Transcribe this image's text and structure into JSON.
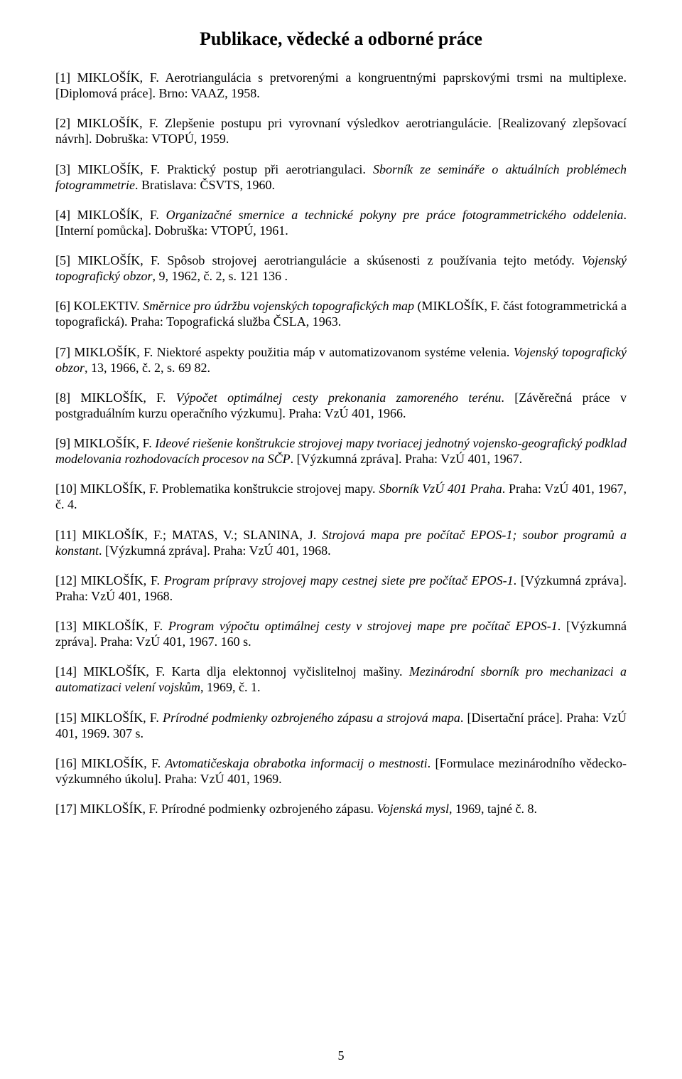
{
  "title": "Publikace, vědecké a odborné práce",
  "page_number": "5",
  "entries": [
    {
      "lead": "[1] MIKLOŠÍK, F. Aerotriangulácia s pretvorenými a kongruentnými paprskovými trsmi na multiplexe. [Diplomová práce]. Brno: VAAZ, 1958.",
      "italic_title": "",
      "tail": ""
    },
    {
      "lead": "[2] MIKLOŠÍK, F. Zlepšenie postupu pri vyrovnaní výsledkov aerotriangulácie. [Realizovaný zlepšovací návrh]. Dobruška: VTOPÚ, 1959.",
      "italic_title": "",
      "tail": ""
    },
    {
      "lead": "[3] MIKLOŠÍK, F. Praktický postup při aerotriangulaci. ",
      "italic_title": "Sborník ze semináře o aktuálních problémech fotogrammetrie",
      "tail": ". Bratislava: ČSVTS, 1960."
    },
    {
      "lead": "[4] MIKLOŠÍK, F. ",
      "italic_title": "Organizačné smernice a technické pokyny pre práce fotogrammetrického oddelenia",
      "tail": ". [Interní pomůcka]. Dobruška: VTOPÚ, 1961."
    },
    {
      "lead": "[5] MIKLOŠÍK, F. Spôsob strojovej aerotriangulácie a skúsenosti z používania tejto metódy. ",
      "italic_title": "Vojenský topografický obzor",
      "tail": ", 9, 1962, č. 2, s. 121 136 ."
    },
    {
      "lead": "[6] KOLEKTIV. ",
      "italic_title": "Směrnice pro údržbu vojenských topografických map",
      "tail": " (MIKLOŠÍK, F. část fotogrammetrická a topografická). Praha: Topografická služba ČSLA, 1963."
    },
    {
      "lead": "[7] MIKLOŠÍK, F. Niektoré aspekty použitia máp v automatizovanom systéme velenia. ",
      "italic_title": "Vojenský topografický obzor",
      "tail": ", 13, 1966, č. 2, s. 69 82."
    },
    {
      "lead": "[8] MIKLOŠÍK, F. ",
      "italic_title": "Výpočet optimálnej cesty prekonania zamoreného terénu",
      "tail": ". [Závěrečná práce v postgraduálním kurzu operačního výzkumu]. Praha: VzÚ 401, 1966."
    },
    {
      "lead": "[9] MIKLOŠÍK, F. ",
      "italic_title": "Ideové riešenie konštrukcie strojovej mapy tvoriacej jednotný vojensko-geografický podklad modelovania rozhodovacích procesov na SČP",
      "tail": ". [Výzkumná zpráva]. Praha: VzÚ 401, 1967."
    },
    {
      "lead": "[10] MIKLOŠÍK, F. Problematika konštrukcie strojovej mapy. ",
      "italic_title": "Sborník VzÚ 401 Praha",
      "tail": ". Praha: VzÚ 401, 1967, č. 4."
    },
    {
      "lead": "[11] MIKLOŠÍK, F.; MATAS, V.; SLANINA, J. ",
      "italic_title": "Strojová mapa pre počítač EPOS-1; soubor programů a konstant",
      "tail": ". [Výzkumná zpráva]. Praha: VzÚ 401, 1968."
    },
    {
      "lead": "[12] MIKLOŠÍK, F. ",
      "italic_title": "Program prípravy strojovej mapy cestnej siete pre počítač EPOS-1",
      "tail": ". [Výzkumná zpráva]. Praha: VzÚ 401, 1968."
    },
    {
      "lead": "[13] MIKLOŠÍK, F. ",
      "italic_title": "Program výpočtu optimálnej cesty v strojovej mape pre počítač EPOS-1",
      "tail": ". [Výzkumná zpráva]. Praha: VzÚ 401, 1967. 160 s."
    },
    {
      "lead": "[14] MIKLOŠÍK, F. Karta dlja elektonnoj vyčislitelnoj mašiny. ",
      "italic_title": "Mezinárodní sborník pro mechanizaci a automatizaci velení vojskům",
      "tail": ", 1969, č. 1."
    },
    {
      "lead": "[15] MIKLOŠÍK, F. ",
      "italic_title": "Prírodné podmienky ozbrojeného zápasu a strojová mapa",
      "tail": ". [Disertační práce]. Praha: VzÚ 401, 1969. 307 s."
    },
    {
      "lead": "[16] MIKLOŠÍK, F. ",
      "italic_title": "Avtomatičeskaja obrabotka informacij o mestnosti",
      "tail": ". [Formulace mezinárodního vědecko-výzkumného úkolu]. Praha: VzÚ 401, 1969."
    },
    {
      "lead": "[17] MIKLOŠÍK, F. Prírodné podmienky ozbrojeného zápasu. ",
      "italic_title": "Vojenská mysl",
      "tail": ", 1969, tajné č. 8."
    }
  ]
}
